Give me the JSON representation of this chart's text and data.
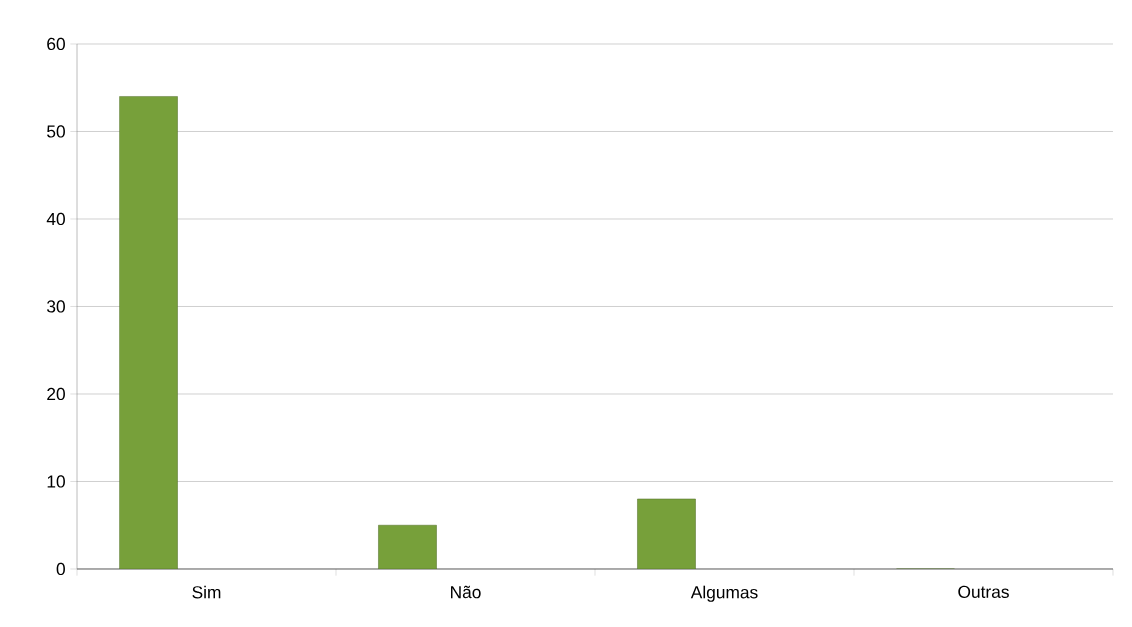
{
  "chart_data": {
    "type": "bar",
    "categories": [
      "Sim",
      "Não",
      "Algumas",
      "Outras"
    ],
    "values": [
      54,
      5,
      8,
      0
    ],
    "color": "#77a03a",
    "ylim": [
      0,
      60
    ],
    "yticks": [
      0,
      10,
      20,
      30,
      40,
      50,
      60
    ],
    "grid": "y"
  }
}
